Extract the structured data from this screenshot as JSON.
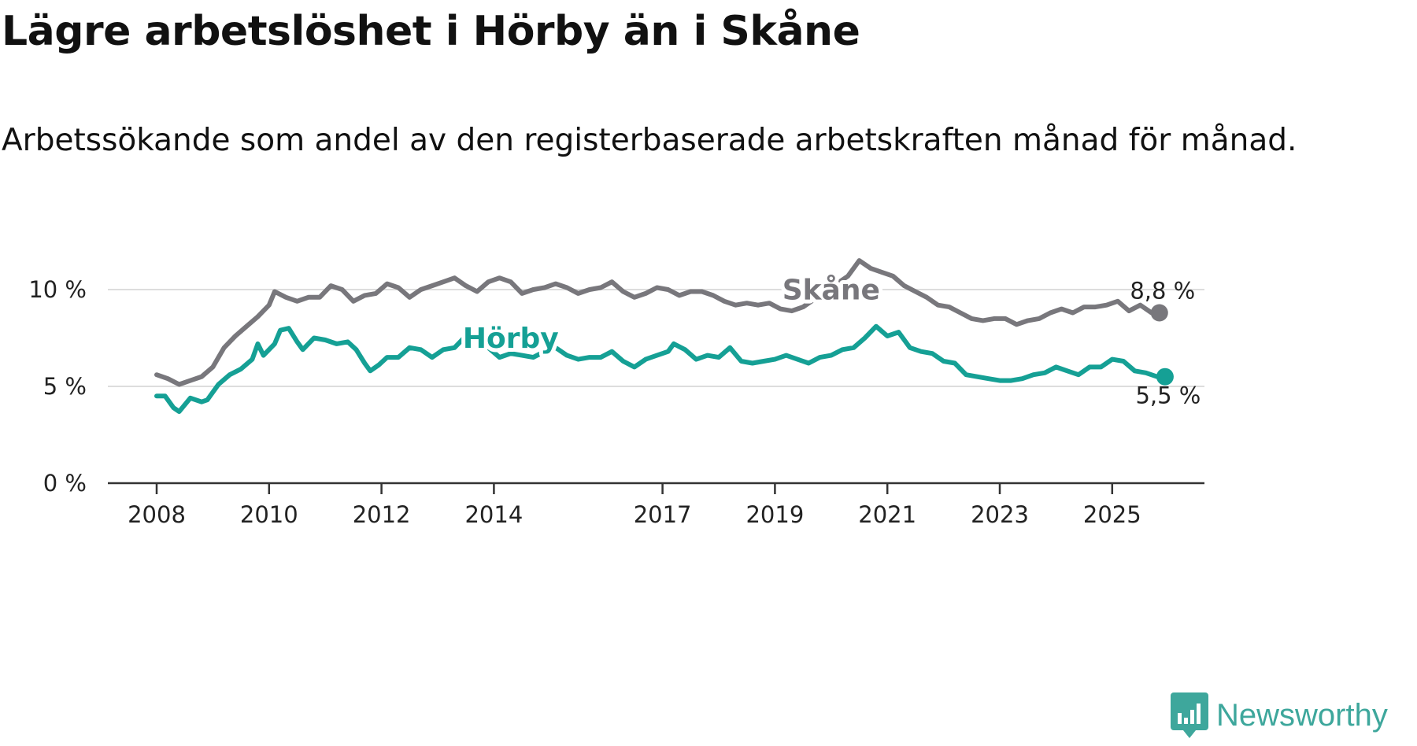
{
  "title": "Lägre arbetslöshet i Hörby än i Skåne",
  "subtitle": "Arbetssökande som andel av den registerbaserade arbetskraften månad för månad.",
  "brand": {
    "name": "Newsworthy",
    "icon": "newsworthy-logo-icon",
    "color": "#3ea79c"
  },
  "chart_data": {
    "type": "line",
    "title": "Lägre arbetslöshet i Hörby än i Skåne",
    "subtitle": "Arbetssökande som andel av den registerbaserade arbetskraften månad för månad.",
    "xlabel": "",
    "ylabel": "",
    "x_range": [
      2007.4,
      2026.9
    ],
    "ylim": [
      0,
      12
    ],
    "y_ticks": [
      0,
      5,
      10
    ],
    "y_tick_labels": [
      "0 %",
      "5 %",
      "10 %"
    ],
    "x_ticks": [
      2008,
      2010,
      2012,
      2014,
      2017,
      2019,
      2021,
      2023,
      2025
    ],
    "x_tick_labels": [
      "2008",
      "2010",
      "2012",
      "2014",
      "2017",
      "2019",
      "2021",
      "2023",
      "2025"
    ],
    "grid": "horizontal",
    "series": [
      {
        "name": "Skåne",
        "color": "#78777c",
        "end_label": "8,8 %",
        "points": [
          [
            2008.0,
            5.6
          ],
          [
            2008.2,
            5.4
          ],
          [
            2008.4,
            5.1
          ],
          [
            2008.6,
            5.3
          ],
          [
            2008.8,
            5.5
          ],
          [
            2009.0,
            6.0
          ],
          [
            2009.2,
            7.0
          ],
          [
            2009.4,
            7.6
          ],
          [
            2009.6,
            8.1
          ],
          [
            2009.8,
            8.6
          ],
          [
            2010.0,
            9.2
          ],
          [
            2010.1,
            9.9
          ],
          [
            2010.3,
            9.6
          ],
          [
            2010.5,
            9.4
          ],
          [
            2010.7,
            9.6
          ],
          [
            2010.9,
            9.6
          ],
          [
            2011.1,
            10.2
          ],
          [
            2011.3,
            10.0
          ],
          [
            2011.5,
            9.4
          ],
          [
            2011.7,
            9.7
          ],
          [
            2011.9,
            9.8
          ],
          [
            2012.1,
            10.3
          ],
          [
            2012.3,
            10.1
          ],
          [
            2012.5,
            9.6
          ],
          [
            2012.7,
            10.0
          ],
          [
            2012.9,
            10.2
          ],
          [
            2013.1,
            10.4
          ],
          [
            2013.3,
            10.6
          ],
          [
            2013.5,
            10.2
          ],
          [
            2013.7,
            9.9
          ],
          [
            2013.9,
            10.4
          ],
          [
            2014.1,
            10.6
          ],
          [
            2014.3,
            10.4
          ],
          [
            2014.5,
            9.8
          ],
          [
            2014.7,
            10.0
          ],
          [
            2014.9,
            10.1
          ],
          [
            2015.1,
            10.3
          ],
          [
            2015.3,
            10.1
          ],
          [
            2015.5,
            9.8
          ],
          [
            2015.7,
            10.0
          ],
          [
            2015.9,
            10.1
          ],
          [
            2016.1,
            10.4
          ],
          [
            2016.3,
            9.9
          ],
          [
            2016.5,
            9.6
          ],
          [
            2016.7,
            9.8
          ],
          [
            2016.9,
            10.1
          ],
          [
            2017.1,
            10.0
          ],
          [
            2017.3,
            9.7
          ],
          [
            2017.5,
            9.9
          ],
          [
            2017.7,
            9.9
          ],
          [
            2017.9,
            9.7
          ],
          [
            2018.1,
            9.4
          ],
          [
            2018.3,
            9.2
          ],
          [
            2018.5,
            9.3
          ],
          [
            2018.7,
            9.2
          ],
          [
            2018.9,
            9.3
          ],
          [
            2019.1,
            9.0
          ],
          [
            2019.3,
            8.9
          ],
          [
            2019.5,
            9.1
          ],
          [
            2019.7,
            9.5
          ],
          [
            2019.9,
            9.8
          ],
          [
            2020.1,
            10.3
          ],
          [
            2020.3,
            10.7
          ],
          [
            2020.5,
            11.5
          ],
          [
            2020.7,
            11.1
          ],
          [
            2020.9,
            10.9
          ],
          [
            2021.1,
            10.7
          ],
          [
            2021.3,
            10.2
          ],
          [
            2021.5,
            9.9
          ],
          [
            2021.7,
            9.6
          ],
          [
            2021.9,
            9.2
          ],
          [
            2022.1,
            9.1
          ],
          [
            2022.3,
            8.8
          ],
          [
            2022.5,
            8.5
          ],
          [
            2022.7,
            8.4
          ],
          [
            2022.9,
            8.5
          ],
          [
            2023.1,
            8.5
          ],
          [
            2023.3,
            8.2
          ],
          [
            2023.5,
            8.4
          ],
          [
            2023.7,
            8.5
          ],
          [
            2023.9,
            8.8
          ],
          [
            2024.1,
            9.0
          ],
          [
            2024.3,
            8.8
          ],
          [
            2024.5,
            9.1
          ],
          [
            2024.7,
            9.1
          ],
          [
            2024.9,
            9.2
          ],
          [
            2025.1,
            9.4
          ],
          [
            2025.3,
            8.9
          ],
          [
            2025.5,
            9.2
          ],
          [
            2025.7,
            8.8
          ]
        ]
      },
      {
        "name": "Hörby",
        "color": "#15a095",
        "end_label": "5,5 %",
        "points": [
          [
            2008.0,
            4.5
          ],
          [
            2008.15,
            4.5
          ],
          [
            2008.3,
            3.9
          ],
          [
            2008.4,
            3.7
          ],
          [
            2008.6,
            4.4
          ],
          [
            2008.8,
            4.2
          ],
          [
            2008.9,
            4.3
          ],
          [
            2009.1,
            5.1
          ],
          [
            2009.3,
            5.6
          ],
          [
            2009.5,
            5.9
          ],
          [
            2009.7,
            6.4
          ],
          [
            2009.8,
            7.2
          ],
          [
            2009.9,
            6.6
          ],
          [
            2010.1,
            7.2
          ],
          [
            2010.2,
            7.9
          ],
          [
            2010.35,
            8.0
          ],
          [
            2010.5,
            7.3
          ],
          [
            2010.6,
            6.9
          ],
          [
            2010.8,
            7.5
          ],
          [
            2011.0,
            7.4
          ],
          [
            2011.2,
            7.2
          ],
          [
            2011.4,
            7.3
          ],
          [
            2011.55,
            6.9
          ],
          [
            2011.7,
            6.2
          ],
          [
            2011.8,
            5.8
          ],
          [
            2011.95,
            6.1
          ],
          [
            2012.1,
            6.5
          ],
          [
            2012.3,
            6.5
          ],
          [
            2012.5,
            7.0
          ],
          [
            2012.7,
            6.9
          ],
          [
            2012.9,
            6.5
          ],
          [
            2013.1,
            6.9
          ],
          [
            2013.3,
            7.0
          ],
          [
            2013.5,
            7.6
          ],
          [
            2013.7,
            7.4
          ],
          [
            2013.9,
            7.0
          ],
          [
            2014.1,
            6.5
          ],
          [
            2014.3,
            6.7
          ],
          [
            2014.5,
            6.6
          ],
          [
            2014.7,
            6.5
          ],
          [
            2014.9,
            6.8
          ],
          [
            2015.1,
            7.0
          ],
          [
            2015.3,
            6.6
          ],
          [
            2015.5,
            6.4
          ],
          [
            2015.7,
            6.5
          ],
          [
            2015.9,
            6.5
          ],
          [
            2016.1,
            6.8
          ],
          [
            2016.3,
            6.3
          ],
          [
            2016.5,
            6.0
          ],
          [
            2016.7,
            6.4
          ],
          [
            2016.9,
            6.6
          ],
          [
            2017.1,
            6.8
          ],
          [
            2017.2,
            7.2
          ],
          [
            2017.4,
            6.9
          ],
          [
            2017.6,
            6.4
          ],
          [
            2017.8,
            6.6
          ],
          [
            2018.0,
            6.5
          ],
          [
            2018.2,
            7.0
          ],
          [
            2018.4,
            6.3
          ],
          [
            2018.6,
            6.2
          ],
          [
            2018.8,
            6.3
          ],
          [
            2019.0,
            6.4
          ],
          [
            2019.2,
            6.6
          ],
          [
            2019.4,
            6.4
          ],
          [
            2019.6,
            6.2
          ],
          [
            2019.8,
            6.5
          ],
          [
            2020.0,
            6.6
          ],
          [
            2020.2,
            6.9
          ],
          [
            2020.4,
            7.0
          ],
          [
            2020.6,
            7.5
          ],
          [
            2020.8,
            8.1
          ],
          [
            2021.0,
            7.6
          ],
          [
            2021.2,
            7.8
          ],
          [
            2021.4,
            7.0
          ],
          [
            2021.6,
            6.8
          ],
          [
            2021.8,
            6.7
          ],
          [
            2022.0,
            6.3
          ],
          [
            2022.2,
            6.2
          ],
          [
            2022.4,
            5.6
          ],
          [
            2022.6,
            5.5
          ],
          [
            2022.8,
            5.4
          ],
          [
            2023.0,
            5.3
          ],
          [
            2023.2,
            5.3
          ],
          [
            2023.4,
            5.4
          ],
          [
            2023.6,
            5.6
          ],
          [
            2023.8,
            5.7
          ],
          [
            2024.0,
            6.0
          ],
          [
            2024.2,
            5.8
          ],
          [
            2024.4,
            5.6
          ],
          [
            2024.6,
            6.0
          ],
          [
            2024.8,
            6.0
          ],
          [
            2025.0,
            6.4
          ],
          [
            2025.2,
            6.3
          ],
          [
            2025.4,
            5.8
          ],
          [
            2025.6,
            5.7
          ],
          [
            2025.8,
            5.5
          ]
        ]
      }
    ]
  }
}
